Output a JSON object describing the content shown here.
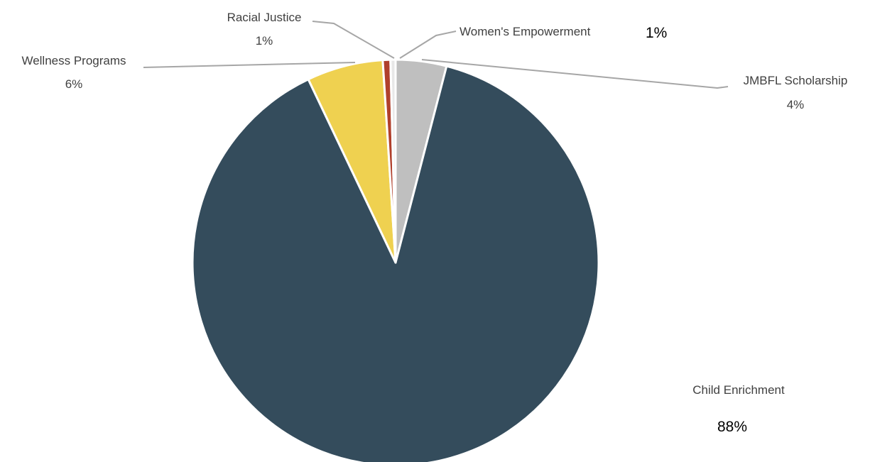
{
  "chart_data": {
    "type": "pie",
    "slices": [
      {
        "name": "JMBFL Scholarship",
        "label": "4%",
        "value": 4,
        "color": "#BFBFBF"
      },
      {
        "name": "Child Enrichment",
        "label": "88%",
        "value": 88,
        "color": "#344C5C"
      },
      {
        "name": "Wellness Programs",
        "label": "6%",
        "value": 6,
        "color": "#EFD150"
      },
      {
        "name": "Racial Justice",
        "label": "1%",
        "value": 0.6,
        "color": "#B0402C"
      },
      {
        "name": "Women's Empowerment",
        "label": "1%",
        "value": 0.4,
        "color": "#E8E8E8"
      }
    ]
  }
}
